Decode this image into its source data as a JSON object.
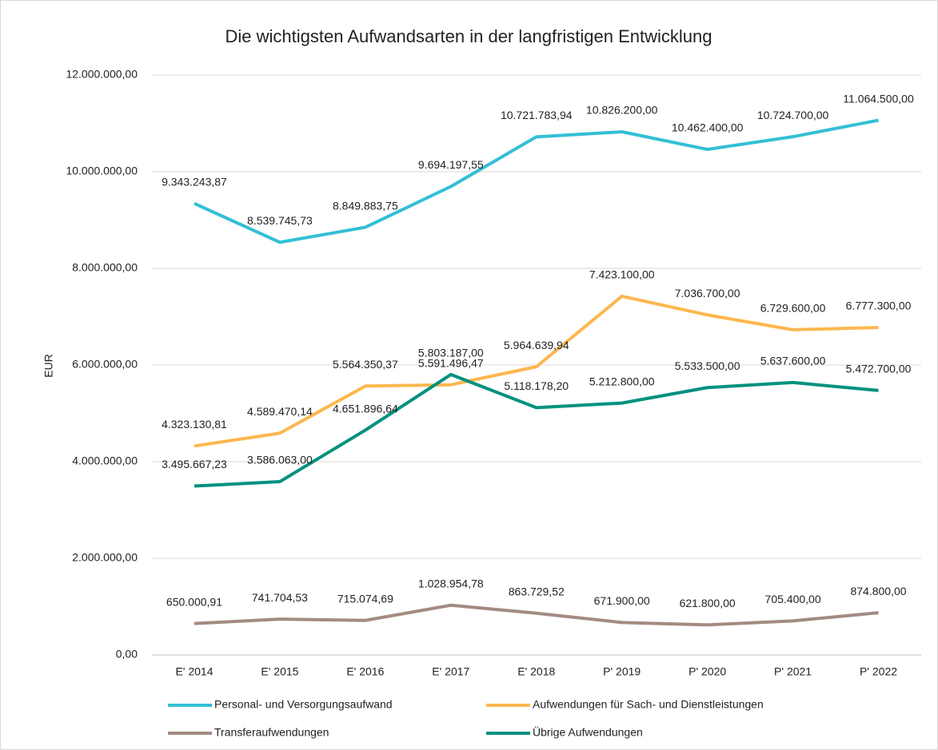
{
  "chart_data": {
    "type": "line",
    "title": "Die wichtigsten Aufwandsarten in der langfristigen Entwicklung",
    "y_label": "EUR",
    "categories": [
      "E' 2014",
      "E' 2015",
      "E' 2016",
      "E' 2017",
      "E' 2018",
      "P' 2019",
      "P' 2020",
      "P' 2021",
      "P' 2022"
    ],
    "ylim": [
      0,
      12000000
    ],
    "yticks": [
      {
        "value": 0,
        "label": "0,00"
      },
      {
        "value": 2000000,
        "label": "2.000.000,00"
      },
      {
        "value": 4000000,
        "label": "4.000.000,00"
      },
      {
        "value": 6000000,
        "label": "6.000.000,00"
      },
      {
        "value": 8000000,
        "label": "8.000.000,00"
      },
      {
        "value": 10000000,
        "label": "10.000.000,00"
      },
      {
        "value": 12000000,
        "label": "12.000.000,00"
      }
    ],
    "grid": true,
    "legend": "bottom",
    "series": [
      {
        "name": "Personal- und Versorgungsaufwand",
        "color": "#33bfd6",
        "values": [
          9343243.87,
          8539745.73,
          8849883.75,
          9694197.55,
          10721783.94,
          10826200,
          10462400,
          10724700,
          11064500
        ],
        "value_labels": [
          "9.343.243,87",
          "8.539.745,73",
          "8.849.883,75",
          "9.694.197,55",
          "10.721.783,94",
          "10.826.200,00",
          "10.462.400,00",
          "10.724.700,00",
          "11.064.500,00"
        ]
      },
      {
        "name": "Aufwendungen für Sach- und Dienstleistungen",
        "color": "#fdb74f",
        "values": [
          4323130.81,
          4589470.14,
          5564350.37,
          5591496.47,
          5964639.94,
          7423100,
          7036700,
          6729600,
          6777300
        ],
        "value_labels": [
          "4.323.130,81",
          "4.589.470,14",
          "5.564.350,37",
          "5.591.496,47",
          "5.964.639,94",
          "7.423.100,00",
          "7.036.700,00",
          "6.729.600,00",
          "6.777.300,00"
        ]
      },
      {
        "name": "Transferaufwendungen",
        "color": "#a38b81",
        "values": [
          650000.91,
          741704.53,
          715074.69,
          1028954.78,
          863729.52,
          671900,
          621800,
          705400,
          874800
        ],
        "value_labels": [
          "650.000,91",
          "741.704,53",
          "715.074,69",
          "1.028.954,78",
          "863.729,52",
          "671.900,00",
          "621.800,00",
          "705.400,00",
          "874.800,00"
        ]
      },
      {
        "name": "Übrige Aufwendungen",
        "color": "#00917f",
        "values": [
          3495667.23,
          3586063,
          4651896.64,
          5803187,
          5118178.2,
          5212800,
          5533500,
          5637600,
          5472700
        ],
        "value_labels": [
          "3.495.667,23",
          "3.586.063,00",
          "4.651.896,64",
          "5.803.187,00",
          "5.118.178,20",
          "5.212.800,00",
          "5.533.500,00",
          "5.637.600,00",
          "5.472.700,00"
        ]
      }
    ]
  }
}
